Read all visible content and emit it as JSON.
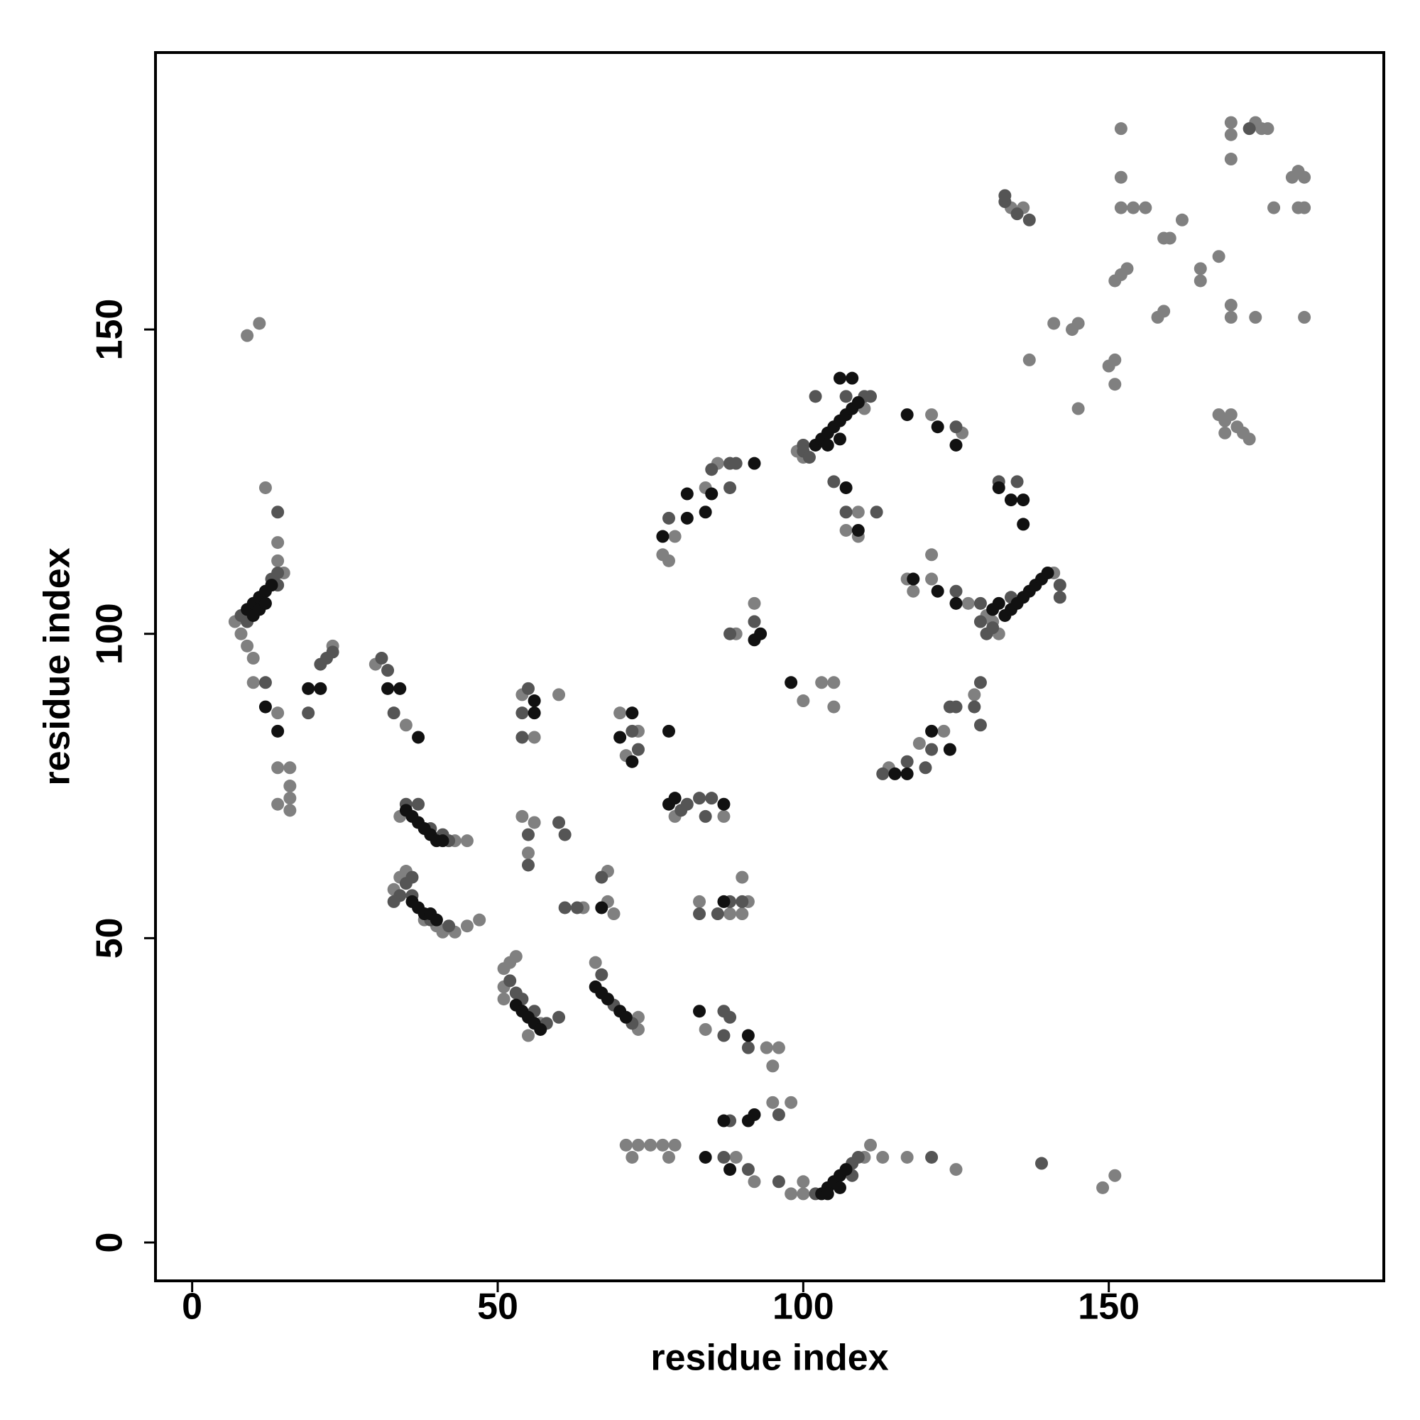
{
  "chart_data": {
    "type": "scatter",
    "xlabel": "residue index",
    "ylabel": "residue index",
    "xlim": [
      -6,
      195
    ],
    "ylim": [
      -6.3,
      195.5
    ],
    "xticks": [
      0,
      50,
      100,
      150
    ],
    "yticks": [
      0,
      50,
      100,
      150
    ],
    "grid": false,
    "series": [
      {
        "color": "#808080",
        "x": [
          8,
          9,
          10,
          7,
          15,
          14,
          14,
          12,
          9,
          11,
          10,
          14,
          14,
          16,
          16,
          16,
          14,
          16,
          23,
          30,
          35,
          43,
          45,
          34,
          33,
          34,
          35,
          38,
          40,
          41,
          43,
          45,
          47,
          51,
          52,
          53,
          51,
          51,
          55,
          57,
          54,
          56,
          60,
          54,
          55,
          56,
          64,
          66,
          68,
          68,
          69,
          73,
          73,
          70,
          71,
          73,
          71,
          72,
          73,
          75,
          77,
          78,
          79,
          79,
          87,
          83,
          88,
          90,
          91,
          90,
          84,
          94,
          95,
          96,
          89,
          92,
          95,
          98,
          98,
          100,
          100,
          110,
          111,
          113,
          117,
          125,
          149,
          151,
          77,
          79,
          78,
          84,
          86,
          88,
          92,
          89,
          100,
          103,
          105,
          105,
          99,
          100,
          110,
          109,
          107,
          109,
          114,
          119,
          123,
          128,
          121,
          126,
          117,
          118,
          121,
          121,
          127,
          130,
          132,
          131,
          141,
          134,
          136,
          137,
          141,
          144,
          145,
          145,
          150,
          151,
          151,
          151,
          152,
          153,
          152,
          152,
          152,
          154,
          156,
          158,
          159,
          159,
          160,
          162,
          165,
          165,
          168,
          170,
          170,
          170,
          170,
          170,
          174,
          168,
          169,
          170,
          169,
          171,
          172,
          173,
          174,
          175,
          176,
          177,
          180,
          181,
          182,
          181,
          182,
          182
        ],
        "values": [
          100,
          98,
          96,
          102,
          110,
          112,
          115,
          124,
          149,
          151,
          92,
          87,
          78,
          78,
          75,
          73,
          72,
          71,
          98,
          95,
          85,
          66,
          66,
          70,
          58,
          60,
          61,
          53,
          52,
          51,
          51,
          52,
          53,
          45,
          46,
          47,
          42,
          40,
          34,
          36,
          90,
          83,
          90,
          70,
          64,
          69,
          55,
          46,
          61,
          56,
          54,
          37,
          35,
          87,
          80,
          84,
          16,
          14,
          16,
          16,
          16,
          14,
          16,
          70,
          70,
          56,
          54,
          60,
          56,
          54,
          35,
          32,
          29,
          32,
          14,
          10,
          23,
          23,
          8,
          10,
          8,
          14,
          16,
          14,
          14,
          12,
          9,
          11,
          113,
          116,
          112,
          124,
          128,
          128,
          105,
          100,
          89,
          92,
          92,
          88,
          130,
          129,
          137,
          116,
          117,
          120,
          78,
          82,
          84,
          90,
          113,
          133,
          109,
          107,
          109,
          136,
          105,
          103,
          100,
          102,
          110,
          170,
          170,
          145,
          151,
          150,
          151,
          137,
          144,
          145,
          141,
          158,
          159,
          160,
          183,
          175,
          170,
          170,
          170,
          152,
          153,
          165,
          165,
          168,
          160,
          158,
          162,
          184,
          182,
          178,
          154,
          152,
          152,
          136,
          135,
          136,
          133,
          134,
          133,
          132,
          184,
          183,
          183,
          170,
          175,
          176,
          175,
          170,
          170,
          152
        ]
      },
      {
        "color": "#555555",
        "x": [
          8,
          9,
          13,
          14,
          14,
          14,
          12,
          19,
          21,
          22,
          23,
          31,
          32,
          33,
          35,
          37,
          39,
          41,
          42,
          34,
          35,
          36,
          33,
          36,
          39,
          42,
          52,
          53,
          54,
          56,
          58,
          60,
          55,
          54,
          54,
          55,
          55,
          60,
          61,
          61,
          63,
          67,
          69,
          72,
          67,
          72,
          73,
          80,
          81,
          83,
          84,
          85,
          83,
          88,
          86,
          90,
          87,
          88,
          87,
          91,
          88,
          87,
          91,
          96,
          96,
          108,
          109,
          102,
          108,
          121,
          139,
          78,
          85,
          88,
          88,
          89,
          92,
          88,
          100,
          100,
          101,
          102,
          107,
          110,
          111,
          105,
          107,
          112,
          113,
          117,
          120,
          121,
          124,
          125,
          128,
          129,
          129,
          125,
          125,
          129,
          130,
          131,
          142,
          142,
          129,
          134,
          133,
          135,
          132,
          133,
          135,
          137,
          173
        ],
        "values": [
          103,
          102,
          109,
          108,
          110,
          120,
          92,
          87,
          95,
          96,
          97,
          96,
          94,
          87,
          72,
          72,
          68,
          67,
          66,
          57,
          59,
          60,
          56,
          57,
          53,
          52,
          43,
          41,
          40,
          38,
          36,
          37,
          91,
          87,
          83,
          67,
          62,
          69,
          67,
          55,
          55,
          44,
          39,
          36,
          60,
          84,
          81,
          71,
          72,
          73,
          70,
          73,
          54,
          56,
          54,
          56,
          38,
          37,
          34,
          32,
          20,
          14,
          12,
          21,
          10,
          13,
          14,
          8,
          11,
          14,
          13,
          119,
          127,
          128,
          124,
          128,
          102,
          100,
          131,
          130,
          129,
          139,
          139,
          139,
          139,
          125,
          120,
          120,
          77,
          79,
          78,
          81,
          88,
          88,
          88,
          92,
          85,
          134,
          107,
          102,
          100,
          101,
          108,
          106,
          105,
          106,
          171,
          125,
          125,
          172,
          169,
          168,
          183
        ]
      },
      {
        "color": "#111111",
        "x": [
          9,
          10,
          11,
          12,
          13,
          10,
          11,
          12,
          12,
          14,
          19,
          21,
          32,
          34,
          37,
          35,
          36,
          37,
          38,
          39,
          40,
          41,
          36,
          37,
          38,
          39,
          40,
          53,
          54,
          55,
          56,
          57,
          56,
          56,
          66,
          67,
          68,
          70,
          71,
          67,
          72,
          70,
          72,
          78,
          78,
          79,
          87,
          87,
          83,
          91,
          84,
          87,
          88,
          91,
          92,
          103,
          104,
          105,
          106,
          107,
          104,
          106,
          77,
          81,
          81,
          84,
          85,
          92,
          92,
          93,
          98,
          102,
          103,
          104,
          105,
          106,
          107,
          108,
          109,
          104,
          106,
          106,
          108,
          107,
          109,
          115,
          117,
          121,
          124,
          117,
          122,
          125,
          118,
          122,
          125,
          133,
          134,
          135,
          136,
          137,
          138,
          139,
          140,
          132,
          131,
          132,
          134,
          136,
          136
        ],
        "values": [
          104,
          105,
          106,
          107,
          108,
          103,
          104,
          105,
          88,
          84,
          91,
          91,
          91,
          91,
          83,
          71,
          70,
          69,
          68,
          67,
          66,
          66,
          56,
          55,
          54,
          54,
          53,
          39,
          38,
          37,
          36,
          35,
          89,
          87,
          42,
          41,
          40,
          38,
          37,
          55,
          87,
          83,
          79,
          84,
          72,
          73,
          72,
          56,
          38,
          34,
          14,
          20,
          12,
          20,
          21,
          8,
          9,
          10,
          11,
          12,
          8,
          9,
          116,
          119,
          123,
          120,
          123,
          128,
          99,
          100,
          92,
          131,
          132,
          133,
          134,
          135,
          136,
          137,
          138,
          131,
          132,
          142,
          142,
          124,
          117,
          77,
          77,
          84,
          81,
          136,
          134,
          131,
          109,
          107,
          105,
          103,
          104,
          105,
          106,
          107,
          108,
          109,
          110,
          105,
          104,
          124,
          122,
          122,
          118
        ]
      }
    ]
  }
}
